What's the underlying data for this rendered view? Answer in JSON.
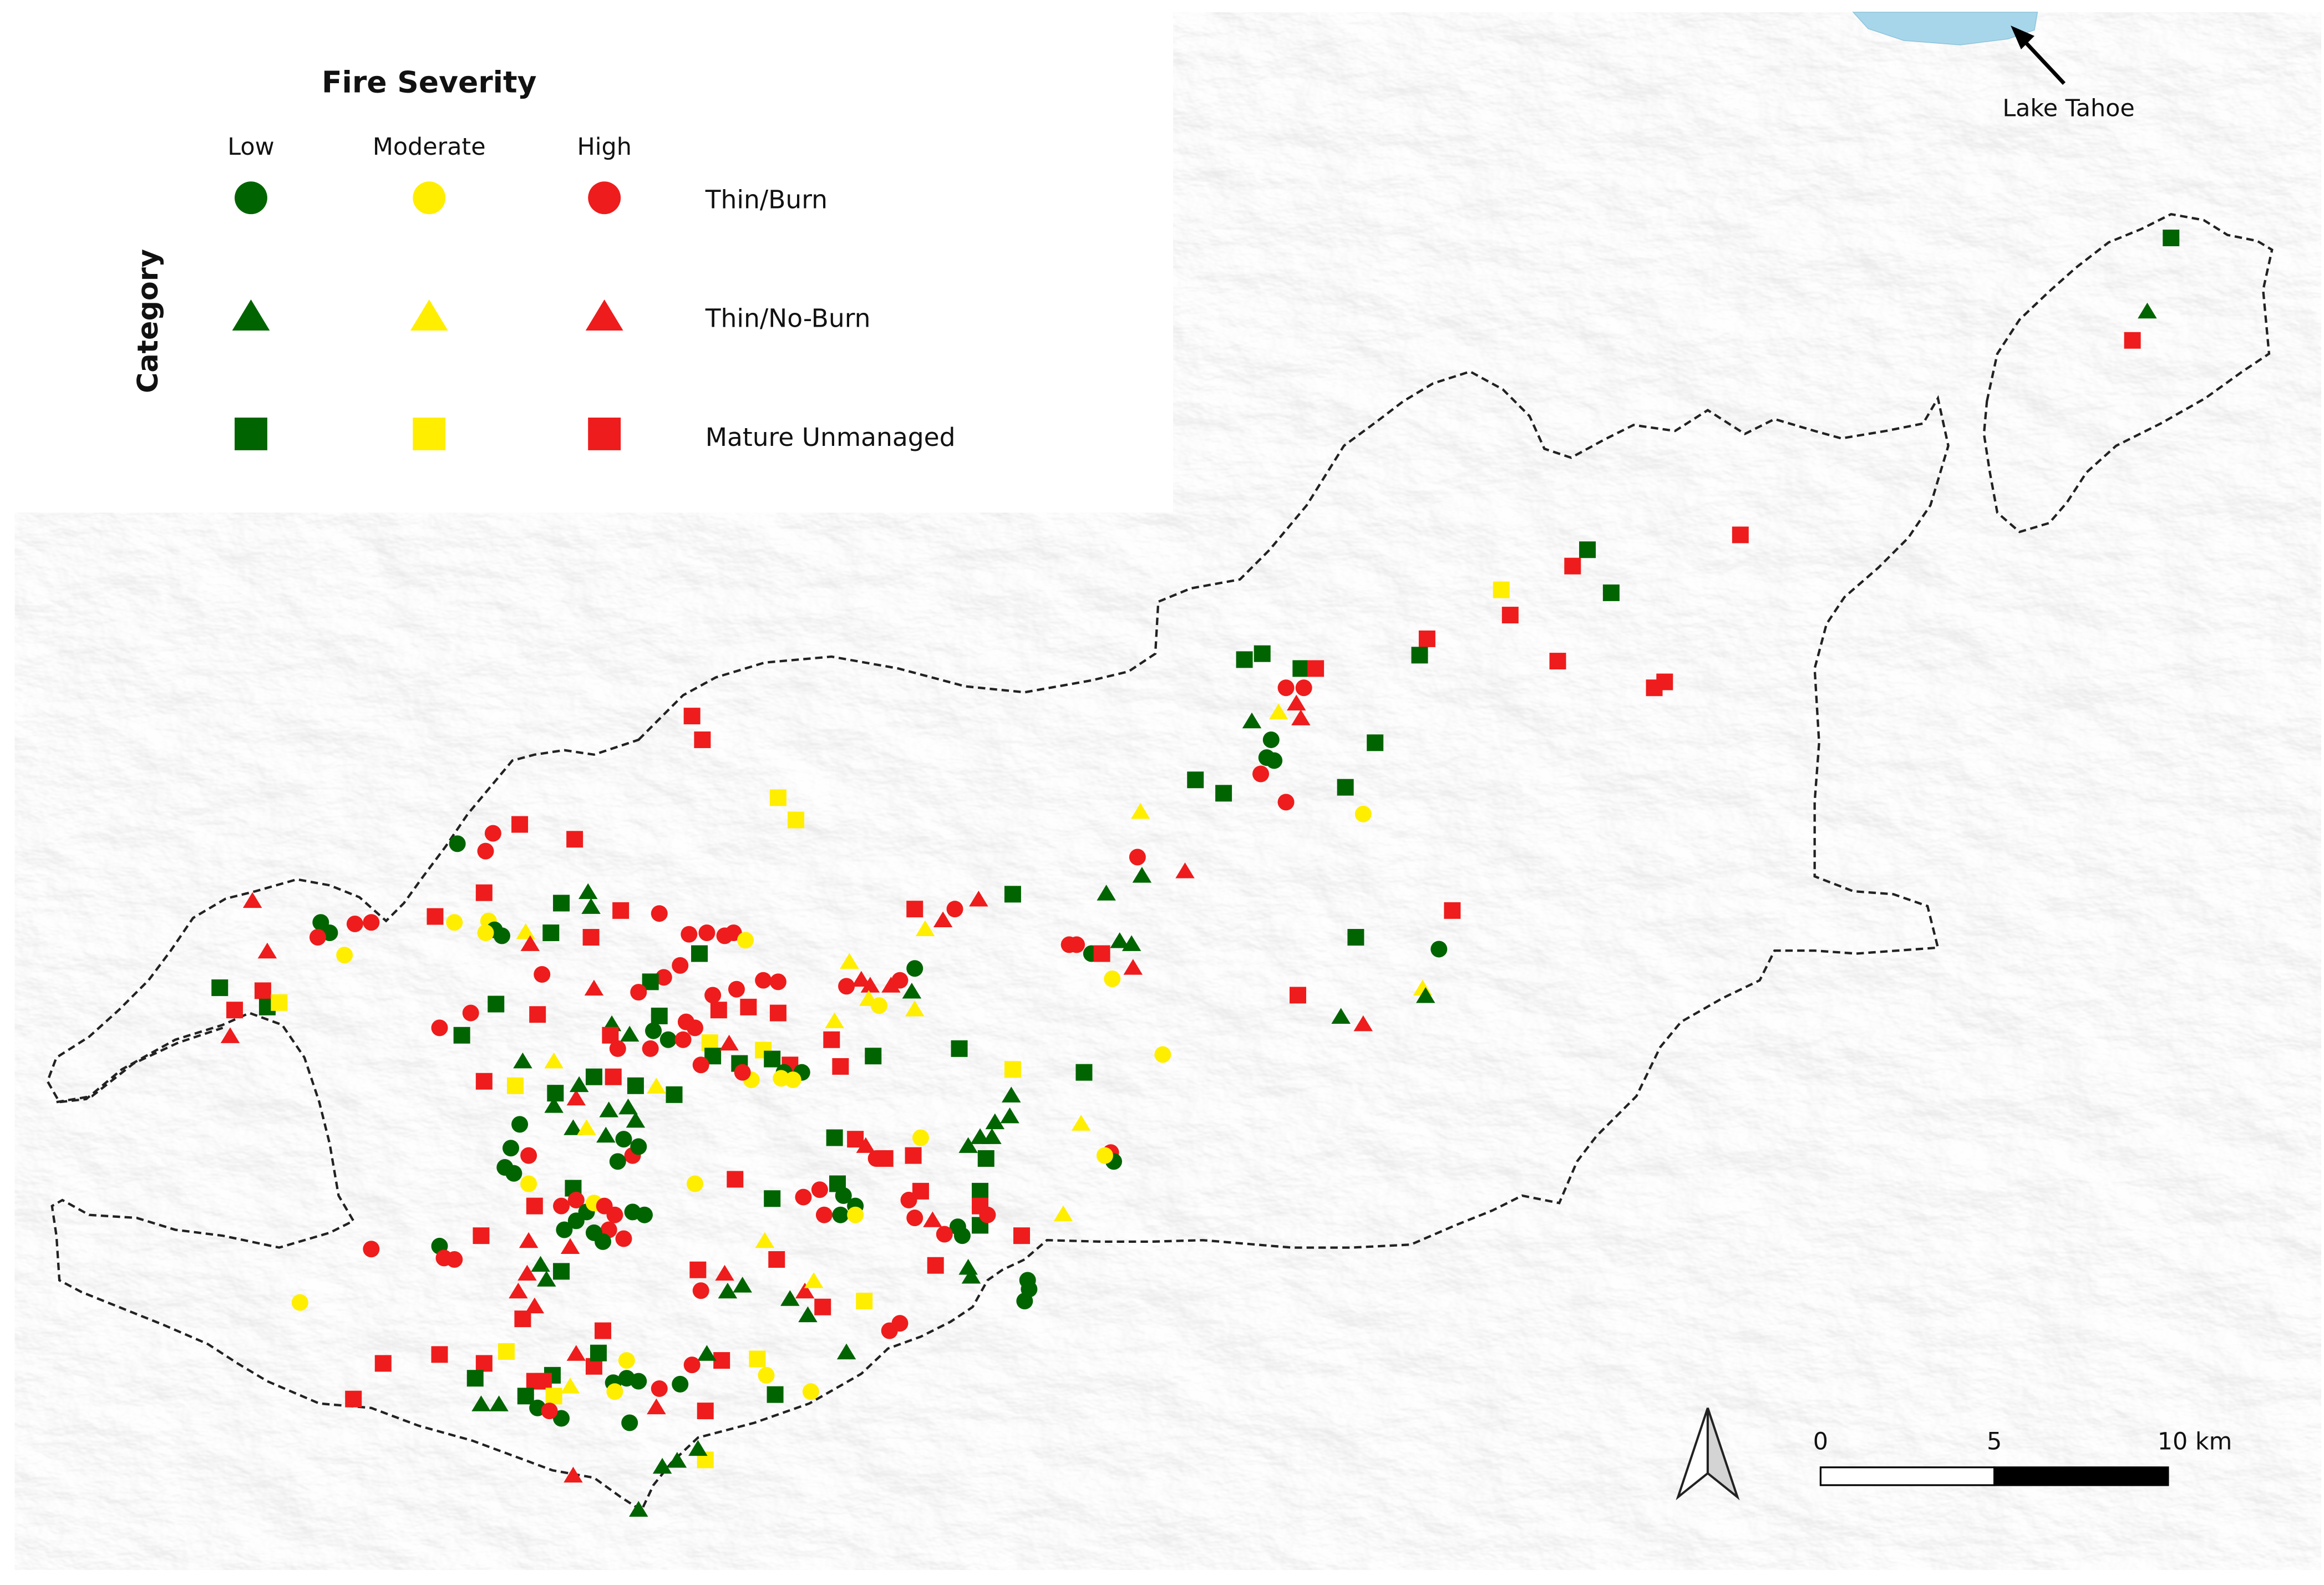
{
  "legend": {
    "title": "Fire Severity",
    "axis_label": "Category",
    "severity_labels": [
      "Low",
      "Moderate",
      "High"
    ],
    "category_labels": [
      "Thin/Burn",
      "Thin/No-Burn",
      "Mature Unmanaged"
    ]
  },
  "annotation": {
    "lake_label": "Lake Tahoe"
  },
  "scale_bar": {
    "ticks": [
      "0",
      "5",
      "10 km"
    ]
  },
  "colors": {
    "low": "#006400",
    "moderate": "#ffee00",
    "high": "#ee1c1c",
    "lake": "#a7d6ea",
    "hillshade": "#ececec",
    "boundary": "#222222"
  }
}
